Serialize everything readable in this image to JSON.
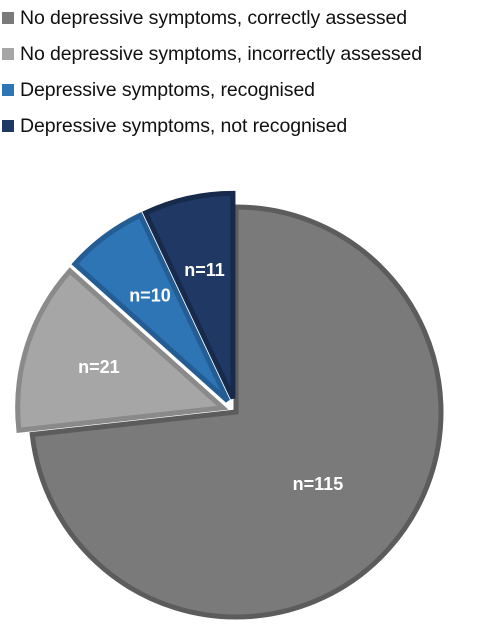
{
  "chart_data": {
    "type": "pie",
    "title": "",
    "legend_position": "top",
    "slices": [
      {
        "name": "No depressive symptoms, correctly assessed",
        "value": 115,
        "label": "n=115",
        "color": "#7a7a7a",
        "border": "#5c5c5c",
        "exploded": false
      },
      {
        "name": "No depressive symptoms, incorrectly assessed",
        "value": 21,
        "label": "n=21",
        "color": "#a6a6a6",
        "border": "#8a8a8a",
        "exploded": true
      },
      {
        "name": "Depressive symptoms, recognised",
        "value": 10,
        "label": "n=10",
        "color": "#2e75b6",
        "border": "#245d94",
        "exploded": true
      },
      {
        "name": "Depressive symptoms, not recognised",
        "value": 11,
        "label": "n=11",
        "color": "#203864",
        "border": "#172a4c",
        "exploded": true
      }
    ]
  }
}
